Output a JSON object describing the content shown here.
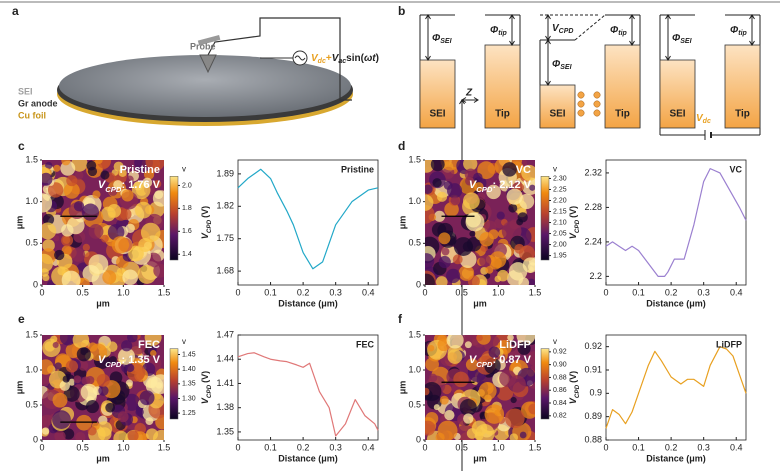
{
  "panel_a": {
    "letter": "a",
    "probe": "Probe",
    "layers": [
      "SEI",
      "Gr anode",
      "Cu foil"
    ],
    "formula": [
      "V",
      "dc",
      "+",
      "V",
      "ac",
      "sin(",
      "ω",
      "t",
      ")"
    ]
  },
  "panel_b": {
    "letter": "b",
    "phi": "Φ",
    "sei_sub": "SEI",
    "tip_sub": "tip",
    "sei": "SEI",
    "tip": "Tip",
    "z": "Z",
    "vcpd": [
      "V",
      "CPD"
    ],
    "vdc": [
      "V",
      "dc"
    ]
  },
  "afm": [
    {
      "letter": "c",
      "name": "Pristine",
      "vcpd": [
        "V",
        "CPD",
        ": 1.76 V"
      ],
      "axis_label": "μm",
      "lim": [
        0,
        1.5
      ],
      "ticks": [
        0,
        0.5,
        {
          "value": 1,
          "label": "1.0"
        },
        1.5
      ],
      "cbar_unit": "v",
      "cbar_lim": [
        1.35,
        2.08
      ],
      "cbar_ticks": [
        1.4,
        1.6,
        1.8,
        {
          "value": 2,
          "label": "2.0"
        }
      ]
    },
    {
      "letter": "d",
      "name": "VC",
      "vcpd": [
        "V",
        "CPD",
        ": 2.12 V"
      ],
      "axis_label": "μm",
      "lim": [
        0,
        1.5
      ],
      "ticks": [
        0,
        0.5,
        {
          "value": 1,
          "label": "1.0"
        },
        1.5
      ],
      "cbar_unit": "v",
      "cbar_lim": [
        1.93,
        2.31
      ],
      "cbar_ticks": [
        1.95,
        {
          "value": 2,
          "label": "2.00"
        },
        2.05,
        {
          "value": 2.1,
          "label": "2.10"
        },
        2.15,
        {
          "value": 2.2,
          "label": "2.20"
        },
        2.25,
        {
          "value": 2.3,
          "label": "2.30"
        }
      ]
    },
    {
      "letter": "e",
      "name": "FEC",
      "vcpd": [
        "V",
        "CPD",
        ": 1.35 V"
      ],
      "axis_label": "μm",
      "lim": [
        0,
        1.5
      ],
      "ticks": [
        0,
        0.5,
        {
          "value": 1,
          "label": "1.0"
        },
        1.5
      ],
      "cbar_unit": "v",
      "cbar_lim": [
        1.23,
        1.47
      ],
      "cbar_ticks": [
        1.25,
        {
          "value": 1.3,
          "label": "1.30"
        },
        1.35,
        {
          "value": 1.4,
          "label": "1.40"
        },
        1.45
      ]
    },
    {
      "letter": "f",
      "name": "LiDFP",
      "vcpd": [
        "V",
        "CPD",
        ": 0.87 V"
      ],
      "axis_label": "μm",
      "lim": [
        0,
        1.5
      ],
      "ticks": [
        0,
        0.5,
        {
          "value": 1,
          "label": "1.0"
        },
        1.5
      ],
      "cbar_unit": "v",
      "cbar_lim": [
        0.815,
        0.925
      ],
      "cbar_ticks": [
        0.82,
        0.84,
        0.86,
        0.88,
        {
          "value": 0.9,
          "label": "0.90"
        },
        0.92
      ]
    }
  ],
  "chart_data": [
    {
      "type": "line",
      "title": "Pristine",
      "x_label": "Distance (μm)",
      "y_label": [
        "V",
        "CPD",
        "(V)"
      ],
      "x": [
        0,
        0.03,
        0.07,
        0.1,
        0.12,
        0.15,
        0.17,
        0.2,
        0.23,
        0.26,
        0.28,
        0.3,
        0.33,
        0.35,
        0.38,
        0.4,
        0.43
      ],
      "values": [
        1.86,
        1.88,
        1.9,
        1.88,
        1.85,
        1.81,
        1.78,
        1.72,
        1.685,
        1.7,
        1.74,
        1.78,
        1.81,
        1.83,
        1.845,
        1.855,
        1.86
      ],
      "color": "#22a8c8",
      "xlim": [
        0,
        0.43
      ],
      "ylim": [
        1.65,
        1.92
      ],
      "xticks": [
        0,
        0.1,
        0.2,
        0.3,
        0.4
      ],
      "yticks": [
        1.68,
        1.75,
        1.82,
        1.89
      ]
    },
    {
      "type": "line",
      "title": "VC",
      "x_label": "Distance (μm)",
      "y_label": [
        "V",
        "CPD",
        "(V)"
      ],
      "x": [
        0,
        0.02,
        0.04,
        0.06,
        0.08,
        0.1,
        0.12,
        0.14,
        0.16,
        0.18,
        0.19,
        0.21,
        0.24,
        0.27,
        0.3,
        0.32,
        0.35,
        0.38,
        0.41,
        0.43
      ],
      "values": [
        2.235,
        2.24,
        2.235,
        2.23,
        2.235,
        2.23,
        2.22,
        2.21,
        2.2,
        2.2,
        2.205,
        2.22,
        2.22,
        2.26,
        2.31,
        2.325,
        2.32,
        2.3,
        2.28,
        2.265
      ],
      "color": "#9b80d0",
      "xlim": [
        0,
        0.43
      ],
      "ylim": [
        2.19,
        2.335
      ],
      "xticks": [
        0,
        0.1,
        0.2,
        0.3,
        0.4
      ],
      "yticks": [
        2.2,
        2.24,
        2.28,
        2.32
      ]
    },
    {
      "type": "line",
      "title": "FEC",
      "x_label": "Distance (μm)",
      "y_label": [
        "V",
        "CPD",
        "(V)"
      ],
      "x": [
        0,
        0.03,
        0.05,
        0.08,
        0.1,
        0.13,
        0.15,
        0.18,
        0.2,
        0.22,
        0.25,
        0.28,
        0.3,
        0.33,
        0.36,
        0.39,
        0.42,
        0.43
      ],
      "values": [
        1.443,
        1.447,
        1.448,
        1.443,
        1.44,
        1.438,
        1.437,
        1.433,
        1.43,
        1.435,
        1.4,
        1.38,
        1.345,
        1.36,
        1.39,
        1.37,
        1.36,
        1.352
      ],
      "color": "#e07878",
      "xlim": [
        0,
        0.43
      ],
      "ylim": [
        1.34,
        1.47
      ],
      "xticks": [
        0,
        0.1,
        0.2,
        0.3,
        0.4
      ],
      "yticks": [
        1.35,
        1.38,
        1.41,
        1.44,
        1.47
      ]
    },
    {
      "type": "line",
      "title": "LiDFP",
      "x_label": "Distance (μm)",
      "y_label": [
        "V",
        "CPD",
        "(V)"
      ],
      "x": [
        0,
        0.02,
        0.04,
        0.06,
        0.08,
        0.1,
        0.13,
        0.15,
        0.17,
        0.2,
        0.23,
        0.25,
        0.27,
        0.3,
        0.32,
        0.35,
        0.37,
        0.39,
        0.41,
        0.43
      ],
      "values": [
        0.885,
        0.893,
        0.891,
        0.887,
        0.892,
        0.9,
        0.912,
        0.918,
        0.914,
        0.907,
        0.904,
        0.906,
        0.906,
        0.903,
        0.912,
        0.92,
        0.919,
        0.916,
        0.908,
        0.9
      ],
      "color": "#e8a020",
      "xlim": [
        0,
        0.43
      ],
      "ylim": [
        0.88,
        0.925
      ],
      "xticks": [
        0,
        0.1,
        0.2,
        0.3,
        0.4
      ],
      "yticks": [
        0.88,
        0.89,
        0.9,
        0.91,
        0.92
      ]
    }
  ]
}
